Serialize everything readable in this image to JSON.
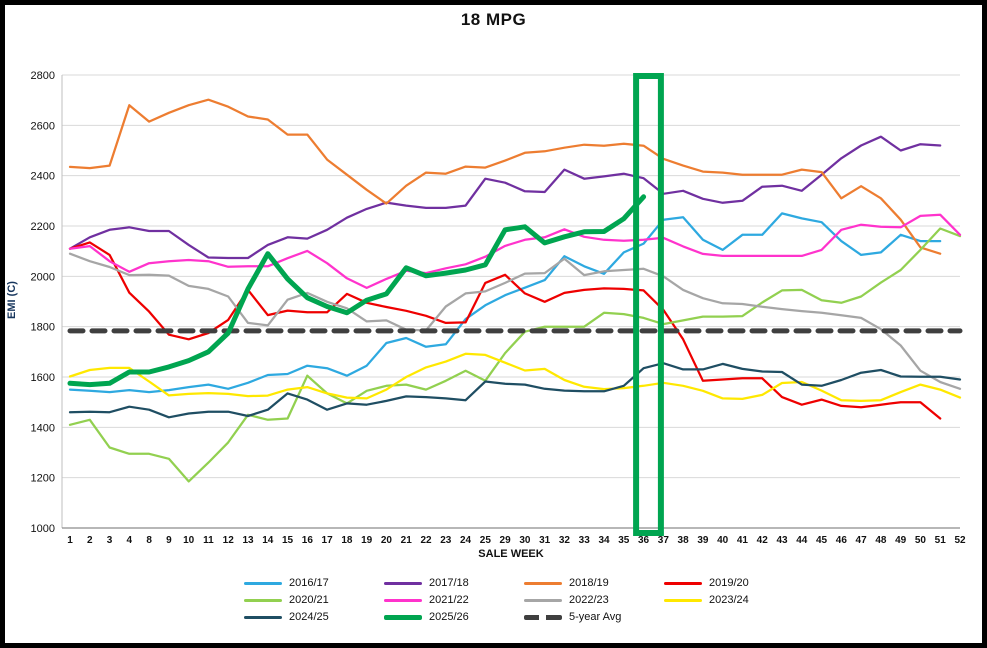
{
  "window": {
    "title": "18 MPG"
  },
  "chart_data": {
    "type": "line",
    "title": "18 MPG",
    "xlabel": "SALE WEEK",
    "ylabel": "EMI (C)",
    "ylim": [
      1000,
      2800
    ],
    "ytick_step": 200,
    "grid": true,
    "legend_position": "bottom",
    "highlight_box": {
      "from_week": "36",
      "to_week": "37",
      "color": "#00A550"
    },
    "colors": {
      "axis_grid": "#D9D9D9",
      "axis_line": "#8C8C8C",
      "avg_line": "#3F3F3F",
      "highlight": "#00A550"
    },
    "categories": [
      "1",
      "2",
      "3",
      "4",
      "8",
      "9",
      "10",
      "11",
      "12",
      "13",
      "14",
      "15",
      "16",
      "17",
      "18",
      "19",
      "20",
      "21",
      "22",
      "23",
      "24",
      "25",
      "29",
      "30",
      "31",
      "32",
      "33",
      "34",
      "35",
      "36",
      "37",
      "38",
      "39",
      "40",
      "41",
      "42",
      "43",
      "44",
      "45",
      "46",
      "47",
      "48",
      "49",
      "50",
      "51",
      "52"
    ],
    "series": [
      {
        "name": "2016/17",
        "color": "#2EA9E0",
        "width": 2.25,
        "values": [
          1550,
          1545,
          1540,
          1548,
          1540,
          1548,
          1560,
          1570,
          1553,
          1577,
          1608,
          1612,
          1645,
          1635,
          1605,
          1645,
          1735,
          1755,
          1720,
          1730,
          1830,
          1885,
          1925,
          1955,
          1985,
          2080,
          2040,
          2010,
          2095,
          2130,
          2225,
          2235,
          2145,
          2105,
          2165,
          2165,
          2250,
          2230,
          2215,
          2140,
          2085,
          2095,
          2165,
          2140,
          2140,
          null
        ]
      },
      {
        "name": "2017/18",
        "color": "#7030A0",
        "width": 2.25,
        "values": [
          2110,
          2155,
          2185,
          2195,
          2180,
          2180,
          2125,
          2075,
          2073,
          2073,
          2125,
          2155,
          2150,
          2185,
          2233,
          2268,
          2293,
          2281,
          2272,
          2272,
          2281,
          2388,
          2372,
          2338,
          2335,
          2424,
          2388,
          2397,
          2408,
          2390,
          2328,
          2340,
          2308,
          2292,
          2300,
          2356,
          2360,
          2340,
          2404,
          2469,
          2520,
          2555,
          2500,
          2525,
          2520,
          null
        ]
      },
      {
        "name": "2018/19",
        "color": "#ED7D31",
        "width": 2.25,
        "values": [
          2435,
          2430,
          2440,
          2680,
          2615,
          2650,
          2680,
          2702,
          2674,
          2635,
          2623,
          2563,
          2563,
          2464,
          2404,
          2344,
          2289,
          2360,
          2412,
          2408,
          2436,
          2432,
          2460,
          2491,
          2497,
          2511,
          2523,
          2519,
          2527,
          2519,
          2467,
          2440,
          2416,
          2412,
          2404,
          2404,
          2404,
          2424,
          2414,
          2310,
          2358,
          2310,
          2225,
          2115,
          2090,
          null
        ]
      },
      {
        "name": "2019/20",
        "color": "#EE0000",
        "width": 2.25,
        "values": [
          2110,
          2135,
          2085,
          1935,
          1860,
          1768,
          1750,
          1775,
          1827,
          1946,
          1846,
          1864,
          1857,
          1857,
          1930,
          1895,
          1878,
          1863,
          1843,
          1815,
          1817,
          1974,
          2006,
          1932,
          1899,
          1934,
          1946,
          1952,
          1950,
          1944,
          1867,
          1750,
          1585,
          1590,
          1595,
          1595,
          1520,
          1490,
          1510,
          1485,
          1480,
          1490,
          1500,
          1500,
          1435,
          null
        ]
      },
      {
        "name": "2020/21",
        "color": "#92D050",
        "width": 2.25,
        "values": [
          1410,
          1430,
          1320,
          1295,
          1295,
          1275,
          1185,
          1260,
          1340,
          1450,
          1430,
          1435,
          1605,
          1535,
          1495,
          1545,
          1565,
          1570,
          1550,
          1585,
          1625,
          1585,
          1695,
          1780,
          1800,
          1800,
          1800,
          1855,
          1850,
          1835,
          1810,
          1825,
          1840,
          1840,
          1842,
          1896,
          1944,
          1946,
          1905,
          1895,
          1920,
          1975,
          2025,
          2105,
          2190,
          2160
        ]
      },
      {
        "name": "2021/22",
        "color": "#FF33CC",
        "width": 2.25,
        "values": [
          2110,
          2120,
          2060,
          2018,
          2052,
          2060,
          2065,
          2060,
          2038,
          2040,
          2040,
          2072,
          2101,
          2052,
          1992,
          1954,
          1990,
          2022,
          2013,
          2032,
          2048,
          2078,
          2121,
          2145,
          2155,
          2187,
          2157,
          2145,
          2141,
          2145,
          2153,
          2119,
          2089,
          2081,
          2081,
          2081,
          2081,
          2081,
          2105,
          2185,
          2205,
          2197,
          2195,
          2240,
          2245,
          2165
        ]
      },
      {
        "name": "2022/23",
        "color": "#A6A6A6",
        "width": 2.25,
        "values": [
          2090,
          2060,
          2037,
          2005,
          2006,
          2003,
          1962,
          1950,
          1920,
          1815,
          1805,
          1907,
          1934,
          1899,
          1873,
          1821,
          1825,
          1788,
          1785,
          1880,
          1932,
          1940,
          1974,
          2011,
          2013,
          2070,
          2005,
          2020,
          2025,
          2030,
          2000,
          1946,
          1913,
          1893,
          1890,
          1879,
          1870,
          1862,
          1855,
          1845,
          1835,
          1790,
          1725,
          1625,
          1580,
          1553
        ]
      },
      {
        "name": "2023/24",
        "color": "#FFE800",
        "width": 2.25,
        "values": [
          1602,
          1628,
          1636,
          1636,
          1582,
          1527,
          1533,
          1536,
          1533,
          1524,
          1526,
          1550,
          1560,
          1535,
          1518,
          1515,
          1550,
          1600,
          1638,
          1661,
          1692,
          1688,
          1657,
          1626,
          1632,
          1588,
          1561,
          1552,
          1556,
          1565,
          1577,
          1565,
          1545,
          1515,
          1513,
          1529,
          1576,
          1580,
          1546,
          1508,
          1505,
          1508,
          1540,
          1570,
          1550,
          1518
        ]
      },
      {
        "name": "2024/25",
        "color": "#1F4E63",
        "width": 2.25,
        "values": [
          1460,
          1462,
          1460,
          1482,
          1470,
          1440,
          1455,
          1462,
          1462,
          1445,
          1470,
          1535,
          1510,
          1470,
          1495,
          1490,
          1505,
          1523,
          1520,
          1515,
          1508,
          1582,
          1573,
          1570,
          1553,
          1546,
          1543,
          1543,
          1565,
          1635,
          1655,
          1630,
          1630,
          1652,
          1632,
          1622,
          1620,
          1570,
          1565,
          1588,
          1617,
          1628,
          1602,
          1601,
          1601,
          1590
        ]
      },
      {
        "name": "2025/26",
        "color": "#00A550",
        "width": 5,
        "values": [
          1575,
          1570,
          1575,
          1620,
          1620,
          1640,
          1665,
          1700,
          1775,
          1950,
          2090,
          1990,
          1915,
          1880,
          1855,
          1905,
          1930,
          2034,
          2002,
          2013,
          2025,
          2046,
          2185,
          2197,
          2133,
          2157,
          2177,
          2178,
          2229,
          2316,
          null,
          null,
          null,
          null,
          null,
          null,
          null,
          null,
          null,
          null,
          null,
          null,
          null,
          null,
          null,
          null
        ]
      },
      {
        "name": "5-year Avg",
        "color": "#3F3F3F",
        "width": 5,
        "dash": [
          13,
          9
        ],
        "values": [
          1783,
          1783,
          1783,
          1783,
          1783,
          1783,
          1783,
          1783,
          1783,
          1783,
          1783,
          1783,
          1783,
          1783,
          1783,
          1783,
          1783,
          1783,
          1783,
          1783,
          1783,
          1783,
          1783,
          1783,
          1783,
          1783,
          1783,
          1783,
          1783,
          1783,
          1783,
          1783,
          1783,
          1783,
          1783,
          1783,
          1783,
          1783,
          1783,
          1783,
          1783,
          1783,
          1783,
          1783,
          1783,
          1783
        ]
      }
    ]
  }
}
